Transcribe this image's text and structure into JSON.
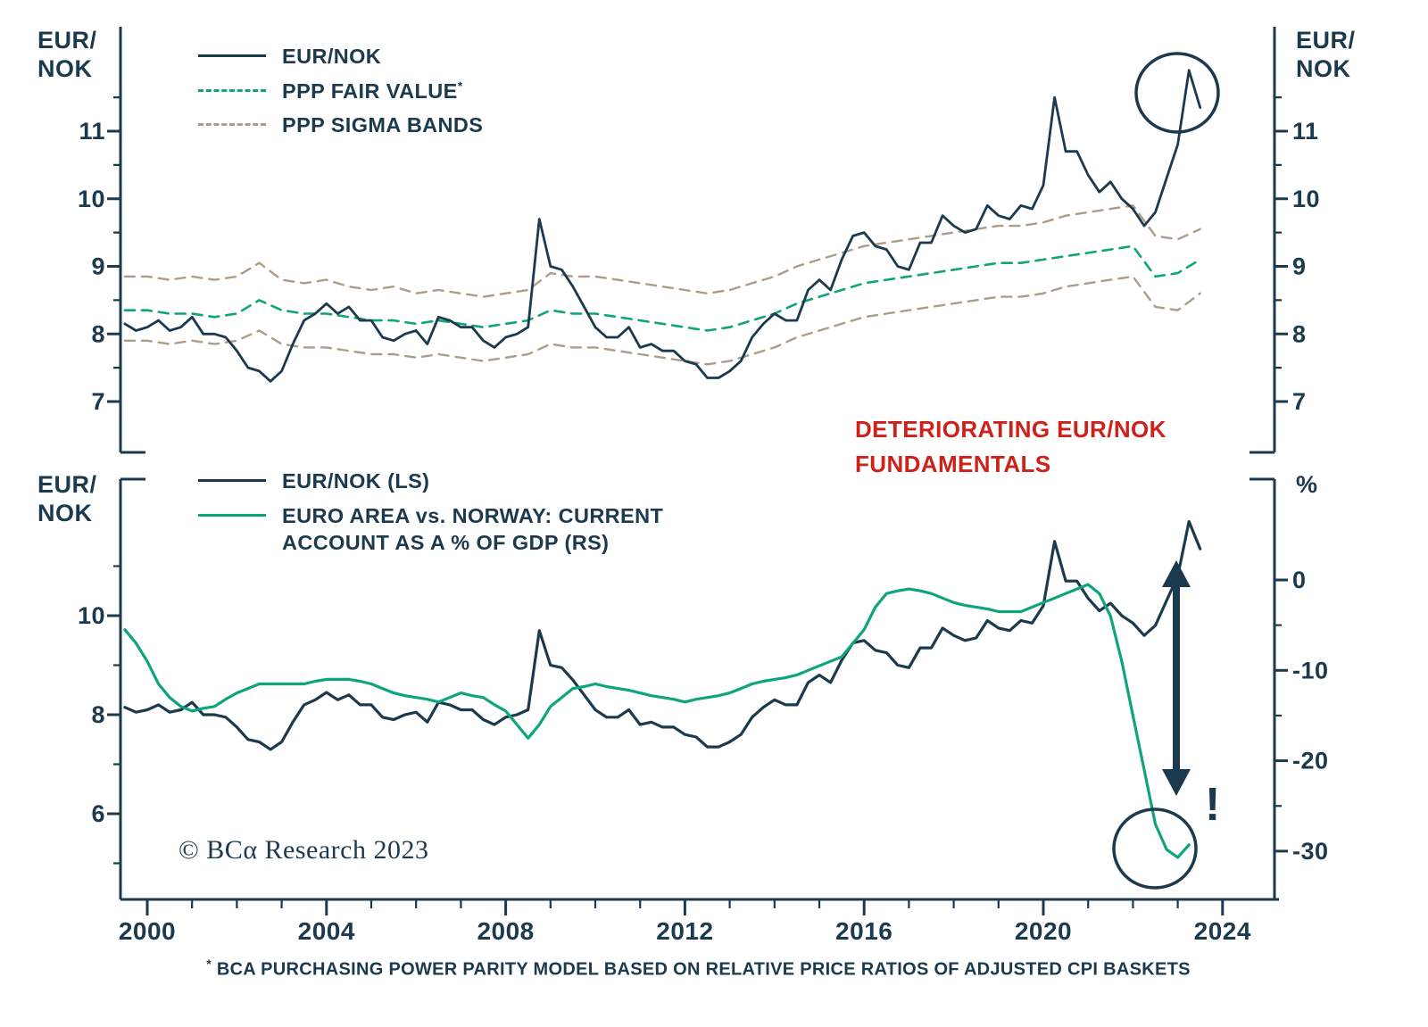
{
  "colors": {
    "navy": "#1b3a4d",
    "green": "#0ea47c",
    "tan": "#ac9d8b",
    "red": "#d0201a",
    "background": "#ffffff"
  },
  "axis_corner_labels": {
    "top_left": [
      "EUR/",
      "NOK"
    ],
    "top_right": [
      "EUR/",
      "NOK"
    ],
    "bottom_left": [
      "EUR/",
      "NOK"
    ],
    "bottom_right": "%"
  },
  "legend_top": {
    "items": [
      {
        "label": "EUR/NOK",
        "style": "solid",
        "color": "navy"
      },
      {
        "label": "PPP FAIR VALUE",
        "marker": "*",
        "style": "dashed",
        "color": "green"
      },
      {
        "label": "PPP SIGMA BANDS",
        "style": "dashed",
        "color": "tan"
      }
    ]
  },
  "legend_bottom": {
    "items": [
      {
        "label": "EUR/NOK (LS)",
        "style": "solid",
        "color": "navy"
      },
      {
        "label": "EURO AREA vs. NORWAY: CURRENT ACCOUNT AS A % OF GDP (RS)",
        "style": "solid",
        "color": "green"
      }
    ]
  },
  "annotations": {
    "deteriorating": {
      "line1": "DETERIORATING EUR/NOK",
      "line2": "FUNDAMENTALS"
    },
    "exclamation": "!",
    "copyright": "© BCα Research 2023",
    "footnote_marker": "*",
    "footnote": " BCA PURCHASING POWER PARITY MODEL BASED ON RELATIVE PRICE RATIOS OF ADJUSTED CPI BASKETS"
  },
  "chart_data": [
    {
      "type": "line",
      "panel": "top",
      "ylabel_left": "EUR/NOK",
      "ylabel_right": "EUR/NOK",
      "ylim": [
        6.6,
        12.2
      ],
      "xlim": [
        1999.3,
        2024.6
      ],
      "grid": false,
      "y_ticks": [
        7,
        8,
        9,
        10,
        11
      ],
      "series": [
        {
          "name": "EUR/NOK",
          "color": "navy",
          "style": "solid",
          "width": 2.8,
          "x_start": 1999.5,
          "x_step": 0.25,
          "values": [
            8.15,
            8.05,
            8.1,
            8.2,
            8.05,
            8.1,
            8.25,
            8.0,
            8.0,
            7.95,
            7.75,
            7.5,
            7.45,
            7.3,
            7.45,
            7.85,
            8.2,
            8.3,
            8.45,
            8.3,
            8.4,
            8.2,
            8.2,
            7.95,
            7.9,
            8.0,
            8.05,
            7.85,
            8.25,
            8.2,
            8.1,
            8.1,
            7.9,
            7.8,
            7.95,
            8.0,
            8.1,
            9.7,
            9.0,
            8.95,
            8.7,
            8.4,
            8.1,
            7.95,
            7.95,
            8.1,
            7.8,
            7.85,
            7.75,
            7.75,
            7.6,
            7.55,
            7.35,
            7.35,
            7.45,
            7.6,
            7.95,
            8.15,
            8.3,
            8.2,
            8.2,
            8.65,
            8.8,
            8.65,
            9.1,
            9.45,
            9.5,
            9.3,
            9.25,
            9.0,
            8.95,
            9.35,
            9.35,
            9.75,
            9.6,
            9.5,
            9.55,
            9.9,
            9.75,
            9.7,
            9.9,
            9.85,
            10.2,
            11.5,
            10.7,
            10.7,
            10.35,
            10.1,
            10.25,
            10.0,
            9.85,
            9.6,
            9.8,
            10.3,
            10.8,
            11.9,
            11.35
          ]
        },
        {
          "name": "PPP FAIR VALUE*",
          "color": "green",
          "style": "dashed",
          "width": 2.6,
          "x_start": 1999.5,
          "x_step": 0.5,
          "values": [
            8.35,
            8.35,
            8.3,
            8.3,
            8.25,
            8.3,
            8.5,
            8.35,
            8.3,
            8.3,
            8.25,
            8.2,
            8.2,
            8.15,
            8.2,
            8.15,
            8.1,
            8.15,
            8.2,
            8.35,
            8.3,
            8.3,
            8.25,
            8.2,
            8.15,
            8.1,
            8.05,
            8.1,
            8.2,
            8.3,
            8.45,
            8.55,
            8.65,
            8.75,
            8.8,
            8.85,
            8.9,
            8.95,
            9.0,
            9.05,
            9.05,
            9.1,
            9.15,
            9.2,
            9.25,
            9.3,
            8.85,
            8.9,
            9.1
          ]
        },
        {
          "name": "PPP SIGMA BAND (UPPER)",
          "color": "tan",
          "style": "dashed",
          "width": 2.4,
          "x_start": 1999.5,
          "x_step": 0.5,
          "values": [
            8.85,
            8.85,
            8.8,
            8.85,
            8.8,
            8.85,
            9.05,
            8.8,
            8.75,
            8.8,
            8.7,
            8.65,
            8.7,
            8.6,
            8.65,
            8.6,
            8.55,
            8.6,
            8.65,
            8.9,
            8.85,
            8.85,
            8.8,
            8.75,
            8.7,
            8.65,
            8.6,
            8.65,
            8.75,
            8.85,
            9.0,
            9.1,
            9.2,
            9.3,
            9.35,
            9.4,
            9.45,
            9.5,
            9.55,
            9.6,
            9.6,
            9.65,
            9.75,
            9.8,
            9.85,
            9.9,
            9.45,
            9.4,
            9.55
          ]
        },
        {
          "name": "PPP SIGMA BAND (LOWER)",
          "color": "tan",
          "style": "dashed",
          "width": 2.4,
          "x_start": 1999.5,
          "x_step": 0.5,
          "values": [
            7.9,
            7.9,
            7.85,
            7.9,
            7.85,
            7.9,
            8.05,
            7.85,
            7.8,
            7.8,
            7.75,
            7.7,
            7.7,
            7.65,
            7.7,
            7.65,
            7.6,
            7.65,
            7.7,
            7.85,
            7.8,
            7.8,
            7.75,
            7.7,
            7.65,
            7.6,
            7.55,
            7.6,
            7.7,
            7.8,
            7.95,
            8.05,
            8.15,
            8.25,
            8.3,
            8.35,
            8.4,
            8.45,
            8.5,
            8.55,
            8.55,
            8.6,
            8.7,
            8.75,
            8.8,
            8.85,
            8.4,
            8.35,
            8.6
          ]
        }
      ]
    },
    {
      "type": "line",
      "panel": "bottom",
      "ylabel_left": "EUR/NOK",
      "ylabel_right": "%",
      "ylim_left": [
        5.0,
        12.0
      ],
      "ylim_right": [
        4,
        -33
      ],
      "grid": false,
      "y_ticks_left": [
        6,
        8,
        10
      ],
      "y_ticks_right": [
        0,
        -10,
        -20,
        -30
      ],
      "x_ticks": [
        2000,
        2004,
        2008,
        2012,
        2016,
        2020,
        2024
      ],
      "series": [
        {
          "name": "EUR/NOK (LS)",
          "color": "navy",
          "style": "solid",
          "width": 3.2,
          "axis": "left",
          "same_as": "EUR/NOK"
        },
        {
          "name": "EURO AREA vs. NORWAY: CURRENT ACCOUNT AS A % OF GDP (RS)",
          "color": "green",
          "style": "solid",
          "width": 3.2,
          "axis": "right",
          "x_start": 1999.5,
          "x_step": 0.25,
          "values": [
            -5.5,
            -7,
            -9,
            -11.5,
            -13,
            -14,
            -14.5,
            -14.2,
            -14,
            -13.2,
            -12.5,
            -12,
            -11.5,
            -11.5,
            -11.5,
            -11.5,
            -11.5,
            -11.2,
            -11,
            -11,
            -11,
            -11.2,
            -11.5,
            -12,
            -12.5,
            -12.8,
            -13,
            -13.2,
            -13.5,
            -13,
            -12.5,
            -12.8,
            -13,
            -13.8,
            -14.5,
            -16,
            -17.5,
            -16,
            -14,
            -13,
            -12,
            -11.8,
            -11.5,
            -11.8,
            -12,
            -12.2,
            -12.5,
            -12.8,
            -13,
            -13.2,
            -13.5,
            -13.2,
            -13,
            -12.8,
            -12.5,
            -12,
            -11.5,
            -11.2,
            -11,
            -10.8,
            -10.5,
            -10,
            -9.5,
            -9,
            -8.5,
            -7,
            -5.5,
            -3,
            -1.5,
            -1.2,
            -1,
            -1.2,
            -1.5,
            -2,
            -2.5,
            -2.8,
            -3,
            -3.2,
            -3.5,
            -3.5,
            -3.5,
            -3,
            -2.5,
            -2,
            -1.5,
            -1,
            -0.5,
            -1.5,
            -4,
            -9,
            -15,
            -21,
            -27,
            -29.8,
            -30.7,
            -29.3
          ]
        }
      ]
    }
  ]
}
